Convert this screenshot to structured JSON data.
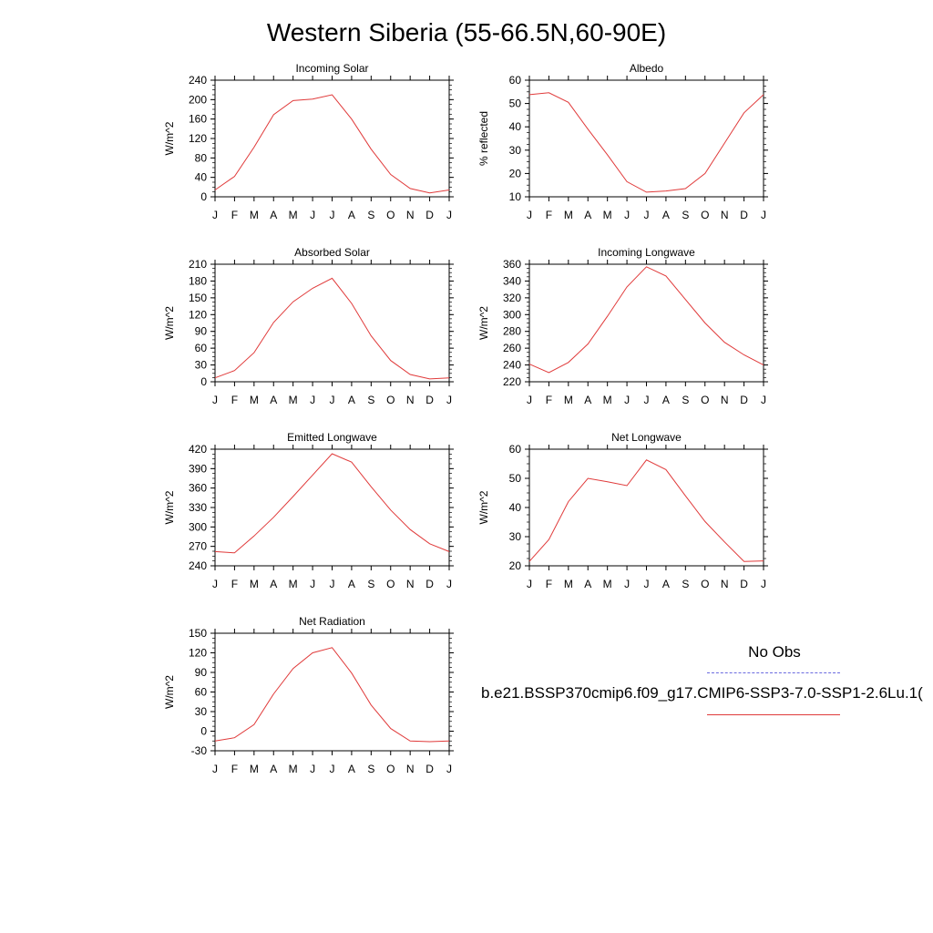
{
  "figure_title": "Western Siberia (55-66.5N,60-90E)",
  "legend": {
    "title": "No Obs",
    "model_label": "b.e21.BSSP370cmip6.f09_g17.CMIP6-SSP3-7.0-SSP1-2.6Lu.1(",
    "obs_color": "#6b6bdf",
    "model_color": "#e03a3a"
  },
  "chart_data": [
    {
      "type": "line",
      "title": "Incoming Solar",
      "ylabel": "W/m^2",
      "categories": [
        "J",
        "F",
        "M",
        "A",
        "M",
        "J",
        "J",
        "A",
        "S",
        "O",
        "N",
        "D",
        "J"
      ],
      "ylim": [
        0,
        240
      ],
      "yticks": [
        0,
        40,
        80,
        120,
        160,
        200,
        240
      ],
      "series": [
        {
          "color": "#e03a3a",
          "values": [
            14,
            42,
            102,
            169,
            198,
            201,
            210,
            160,
            98,
            46,
            17,
            8,
            14
          ]
        }
      ]
    },
    {
      "type": "line",
      "title": "Albedo",
      "ylabel": "% reflected",
      "categories": [
        "J",
        "F",
        "M",
        "A",
        "M",
        "J",
        "J",
        "A",
        "S",
        "O",
        "N",
        "D",
        "J"
      ],
      "ylim": [
        10,
        60
      ],
      "yticks": [
        10,
        20,
        30,
        40,
        50,
        60
      ],
      "series": [
        {
          "color": "#e03a3a",
          "values": [
            53.8,
            54.6,
            50.5,
            39,
            28,
            16.5,
            12,
            12.5,
            13.5,
            20,
            33,
            46,
            53.8
          ]
        }
      ]
    },
    {
      "type": "line",
      "title": "Absorbed Solar",
      "ylabel": "W/m^2",
      "categories": [
        "J",
        "F",
        "M",
        "A",
        "M",
        "J",
        "J",
        "A",
        "S",
        "O",
        "N",
        "D",
        "J"
      ],
      "ylim": [
        0,
        210
      ],
      "yticks": [
        0,
        30,
        60,
        90,
        120,
        150,
        180,
        210
      ],
      "series": [
        {
          "color": "#e03a3a",
          "values": [
            7,
            20,
            52,
            106,
            143,
            167,
            185,
            140,
            82,
            38,
            13,
            5,
            7
          ]
        }
      ]
    },
    {
      "type": "line",
      "title": "Incoming Longwave",
      "ylabel": "W/m^2",
      "categories": [
        "J",
        "F",
        "M",
        "A",
        "M",
        "J",
        "J",
        "A",
        "S",
        "O",
        "N",
        "D",
        "J"
      ],
      "ylim": [
        220,
        360
      ],
      "yticks": [
        220,
        240,
        260,
        280,
        300,
        320,
        340,
        360
      ],
      "series": [
        {
          "color": "#e03a3a",
          "values": [
            241,
            231,
            243,
            265,
            298,
            333,
            357,
            346,
            318,
            290,
            267,
            252,
            240
          ]
        }
      ]
    },
    {
      "type": "line",
      "title": "Emitted Longwave",
      "ylabel": "W/m^2",
      "categories": [
        "J",
        "F",
        "M",
        "A",
        "M",
        "J",
        "J",
        "A",
        "S",
        "O",
        "N",
        "D",
        "J"
      ],
      "ylim": [
        240,
        420
      ],
      "yticks": [
        240,
        270,
        300,
        330,
        360,
        390,
        420
      ],
      "series": [
        {
          "color": "#e03a3a",
          "values": [
            262,
            260,
            286,
            315,
            347,
            380,
            413,
            400,
            362,
            326,
            296,
            274,
            262
          ]
        }
      ]
    },
    {
      "type": "line",
      "title": "Net Longwave",
      "ylabel": "W/m^2",
      "categories": [
        "J",
        "F",
        "M",
        "A",
        "M",
        "J",
        "J",
        "A",
        "S",
        "O",
        "N",
        "D",
        "J"
      ],
      "ylim": [
        20,
        60
      ],
      "yticks": [
        20,
        30,
        40,
        50,
        60
      ],
      "series": [
        {
          "color": "#e03a3a",
          "values": [
            21.5,
            29,
            42,
            50,
            48.8,
            47.5,
            56.3,
            53,
            44,
            35.2,
            28.2,
            21.5,
            21.7
          ]
        }
      ]
    },
    {
      "type": "line",
      "title": "Net Radiation",
      "ylabel": "W/m^2",
      "categories": [
        "J",
        "F",
        "M",
        "A",
        "M",
        "J",
        "J",
        "A",
        "S",
        "O",
        "N",
        "D",
        "J"
      ],
      "ylim": [
        -30,
        150
      ],
      "yticks": [
        -30,
        0,
        30,
        60,
        90,
        120,
        150
      ],
      "series": [
        {
          "color": "#e03a3a",
          "values": [
            -15,
            -10,
            10,
            57,
            96,
            120,
            128,
            89,
            40,
            4,
            -15,
            -16,
            -15
          ]
        }
      ]
    }
  ]
}
